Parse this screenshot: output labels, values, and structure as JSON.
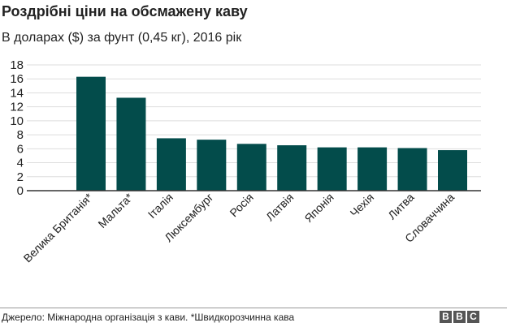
{
  "header": {
    "title": "Роздрібні ціни на обсмажену каву",
    "subtitle": "В доларах ($) за фунт (0,45 кг), 2016 рік"
  },
  "footer": {
    "source": "Джерело: Міжнародна організація з кави. *Швидкорозчинна кава",
    "logo_letters": [
      "B",
      "B",
      "C"
    ]
  },
  "colors": {
    "bar": "#034c4b",
    "grid": "#dddddd",
    "axis": "#333333",
    "text": "#222222"
  },
  "chart_data": {
    "type": "bar",
    "title": "Роздрібні ціни на обсмажену каву",
    "subtitle": "В доларах ($) за фунт (0,45 кг), 2016 рік",
    "xlabel": "",
    "ylabel": "",
    "categories": [
      "Велика Британія*",
      "Мальта*",
      "Італія",
      "Люксембург",
      "Росія",
      "Латвія",
      "Японія",
      "Чехія",
      "Литва",
      "Словаччина"
    ],
    "values": [
      16.3,
      13.3,
      7.5,
      7.3,
      6.7,
      6.5,
      6.2,
      6.2,
      6.1,
      5.8
    ],
    "ylim": [
      0,
      18
    ],
    "yticks": [
      "0",
      "2",
      "4",
      "6",
      "8",
      "10",
      "12",
      "14",
      "16",
      "18"
    ],
    "grid": true,
    "legend": "none"
  }
}
